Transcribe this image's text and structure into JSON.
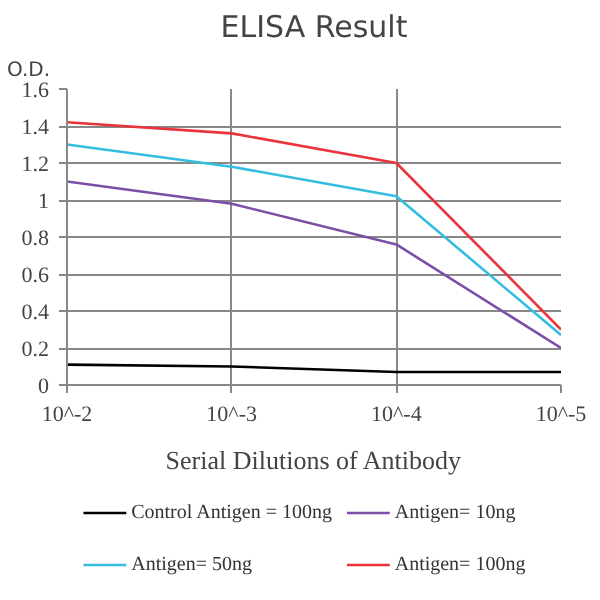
{
  "chart_data": {
    "type": "line",
    "title": "ELISA Result",
    "ylabel": "O.D.",
    "xlabel": "Serial Dilutions of Antibody",
    "categories": [
      "10^-2",
      "10^-3",
      "10^-4",
      "10^-5"
    ],
    "series": [
      {
        "name": "Control Antigen = 100ng",
        "color": "#000000",
        "values": [
          0.11,
          0.1,
          0.07,
          0.07
        ]
      },
      {
        "name": "Antigen= 10ng",
        "color": "#7b4fa6",
        "values": [
          1.1,
          0.98,
          0.76,
          0.2
        ]
      },
      {
        "name": "Antigen= 50ng",
        "color": "#33bde0",
        "values": [
          1.3,
          1.18,
          1.02,
          0.27
        ]
      },
      {
        "name": "Antigen= 100ng",
        "color": "#e8343a",
        "values": [
          1.42,
          1.36,
          1.2,
          0.3
        ]
      }
    ],
    "ylim": [
      0,
      1.6
    ],
    "yticks": [
      0,
      0.2,
      0.4,
      0.6,
      0.8,
      1,
      1.2,
      1.4,
      1.6
    ],
    "grid": true,
    "legend": "bottom",
    "marker": "none",
    "line_style": "solid"
  }
}
